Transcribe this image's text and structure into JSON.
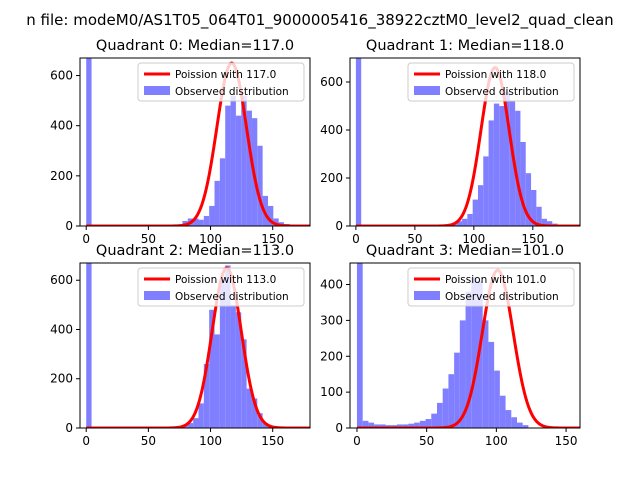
{
  "figure": {
    "suptitle": "n file: modeM0/AS1T05_064T01_9000005416_38922cztM0_level2_quad_clean"
  },
  "colors": {
    "histogram": "#7f7fff",
    "poisson": "#ff0000",
    "axes": "#000000"
  },
  "chart_data": [
    {
      "type": "bar",
      "title": "Quadrant 0: Median=117.0",
      "legend": [
        "Poission with 117.0",
        "Observed distribution"
      ],
      "legend_position": "upper right",
      "xlim": [
        -5,
        180
      ],
      "ylim": [
        0,
        670
      ],
      "xticks": [
        0,
        50,
        100,
        150
      ],
      "yticks": [
        0,
        200,
        400,
        600
      ],
      "median": 117.0,
      "hist_x_start": 0,
      "hist_bin_width": 4.3,
      "hist_values": [
        1000,
        0,
        0,
        0,
        0,
        0,
        0,
        0,
        0,
        0,
        0,
        0,
        0,
        0,
        0,
        0,
        0,
        5,
        20,
        30,
        30,
        25,
        40,
        80,
        180,
        270,
        480,
        520,
        440,
        520,
        460,
        430,
        320,
        120,
        80,
        30,
        15,
        8,
        5,
        3
      ],
      "poisson_peak": 650
    },
    {
      "type": "bar",
      "title": "Quadrant 1: Median=118.0",
      "legend": [
        "Poission with 118.0",
        "Observed distribution"
      ],
      "legend_position": "upper right",
      "xlim": [
        -5,
        190
      ],
      "ylim": [
        0,
        700
      ],
      "xticks": [
        0,
        50,
        100,
        150
      ],
      "yticks": [
        0,
        200,
        400,
        600
      ],
      "median": 118.0,
      "hist_x_start": 0,
      "hist_bin_width": 4.5,
      "hist_values": [
        1000,
        0,
        0,
        0,
        0,
        0,
        0,
        0,
        0,
        0,
        0,
        0,
        0,
        0,
        0,
        0,
        0,
        5,
        10,
        20,
        30,
        50,
        110,
        170,
        290,
        440,
        510,
        500,
        560,
        520,
        480,
        350,
        220,
        150,
        80,
        30,
        20,
        10,
        5
      ],
      "poisson_peak": 660
    },
    {
      "type": "bar",
      "title": "Quadrant 2: Median=113.0",
      "legend": [
        "Poission with 113.0",
        "Observed distribution"
      ],
      "legend_position": "upper right",
      "xlim": [
        -5,
        180
      ],
      "ylim": [
        0,
        670
      ],
      "xticks": [
        0,
        50,
        100,
        150
      ],
      "yticks": [
        0,
        200,
        400,
        600
      ],
      "median": 113.0,
      "hist_x_start": 0,
      "hist_bin_width": 4.3,
      "hist_values": [
        1000,
        0,
        0,
        0,
        0,
        0,
        0,
        0,
        0,
        0,
        0,
        0,
        0,
        0,
        0,
        0,
        2,
        5,
        10,
        20,
        40,
        100,
        260,
        480,
        380,
        600,
        660,
        500,
        470,
        360,
        160,
        120,
        60,
        20,
        10,
        5,
        3
      ],
      "poisson_peak": 650
    },
    {
      "type": "bar",
      "title": "Quadrant 3: Median=101.0",
      "legend": [
        "Poission with 101.0",
        "Observed distribution"
      ],
      "legend_position": "upper right",
      "xlim": [
        -5,
        160
      ],
      "ylim": [
        0,
        460
      ],
      "xticks": [
        0,
        50,
        100,
        150
      ],
      "yticks": [
        0,
        100,
        200,
        300,
        400
      ],
      "median": 101.0,
      "hist_x_start": 0,
      "hist_bin_width": 4.1,
      "hist_values": [
        1000,
        20,
        15,
        10,
        10,
        8,
        8,
        10,
        10,
        12,
        15,
        20,
        25,
        40,
        70,
        110,
        150,
        210,
        300,
        380,
        420,
        410,
        300,
        240,
        160,
        90,
        50,
        30,
        15,
        8
      ],
      "poisson_peak": 440
    }
  ]
}
